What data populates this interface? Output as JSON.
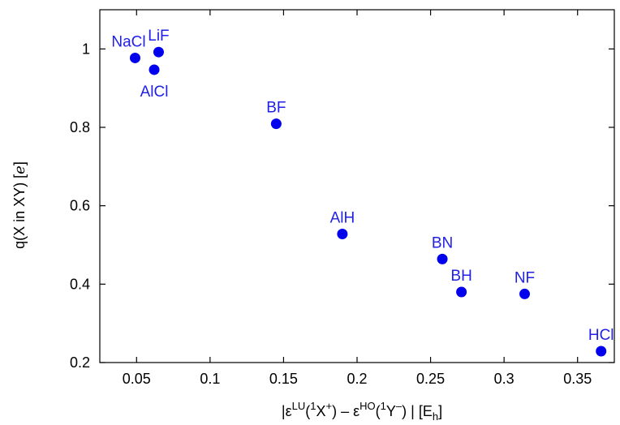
{
  "chart_data": {
    "type": "scatter",
    "title": "",
    "xlabel": {
      "abs_open": "|",
      "eps1": "ε",
      "sup_lu": "LU",
      "open1": "(",
      "sup_1a": "1",
      "x_plus": "X",
      "sup_plus": "+",
      "close_minus": ") – ",
      "eps2": "ε",
      "sup_ho": "HO",
      "open2": "(",
      "sup_1b": "1",
      "y_minus": "Y",
      "sup_minus": "–",
      "close_abs": ") |  [E",
      "sub_h": "h",
      "bracket": "]"
    },
    "ylabel": {
      "main": "q(X in XY) [",
      "unit": "e",
      "close": "]"
    },
    "xlim": [
      0.025,
      0.375
    ],
    "ylim": [
      0.2,
      1.1
    ],
    "xticks": [
      0.05,
      0.1,
      0.15,
      0.2,
      0.25,
      0.3,
      0.35
    ],
    "xtick_labels": [
      "0.05",
      "0.1",
      "0.15",
      "0.2",
      "0.25",
      "0.3",
      "0.35"
    ],
    "yticks": [
      0.2,
      0.4,
      0.6,
      0.8,
      1.0
    ],
    "ytick_labels": [
      "0.2",
      "0.4",
      "0.6",
      "0.8",
      "1"
    ],
    "marker_color": "#0000ee",
    "label_color": "#1f1fe6",
    "points": [
      {
        "label": "NaCl",
        "x": 0.049,
        "y": 0.977,
        "label_pos": "above-left"
      },
      {
        "label": "LiF",
        "x": 0.065,
        "y": 0.992,
        "label_pos": "above"
      },
      {
        "label": "AlCl",
        "x": 0.062,
        "y": 0.947,
        "label_pos": "below"
      },
      {
        "label": "BF",
        "x": 0.145,
        "y": 0.809,
        "label_pos": "above"
      },
      {
        "label": "AlH",
        "x": 0.19,
        "y": 0.528,
        "label_pos": "above"
      },
      {
        "label": "BN",
        "x": 0.258,
        "y": 0.464,
        "label_pos": "above"
      },
      {
        "label": "BH",
        "x": 0.271,
        "y": 0.38,
        "label_pos": "above"
      },
      {
        "label": "NF",
        "x": 0.314,
        "y": 0.375,
        "label_pos": "above"
      },
      {
        "label": "HCl",
        "x": 0.366,
        "y": 0.229,
        "label_pos": "above"
      }
    ]
  }
}
